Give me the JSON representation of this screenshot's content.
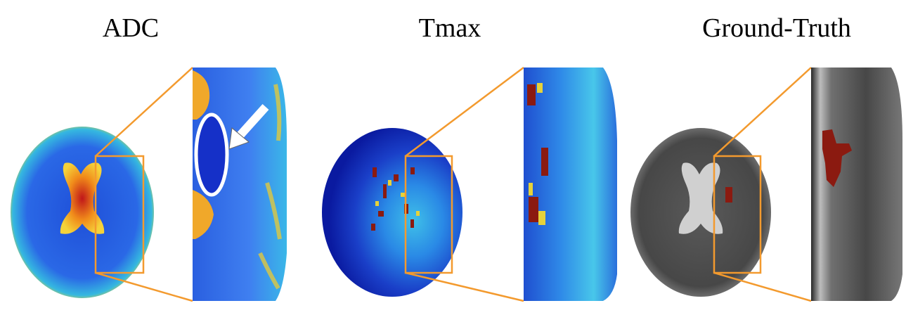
{
  "panels": [
    {
      "title": "ADC"
    },
    {
      "title": "Tmax"
    },
    {
      "title": "Ground-Truth"
    }
  ],
  "colors": {
    "callout": "#f39a2e",
    "background": "#ffffff"
  }
}
